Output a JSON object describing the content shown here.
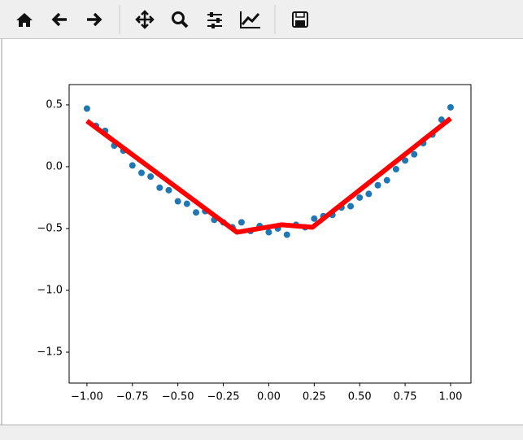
{
  "chart_data": {
    "type": "scatter",
    "points": {
      "color": "#1f77b4",
      "x": [
        -1.0,
        -0.95,
        -0.9,
        -0.85,
        -0.8,
        -0.75,
        -0.7,
        -0.65,
        -0.6,
        -0.55,
        -0.5,
        -0.45,
        -0.4,
        -0.35,
        -0.3,
        -0.25,
        -0.2,
        -0.15,
        -0.1,
        -0.05,
        0.0,
        0.05,
        0.1,
        0.15,
        0.2,
        0.25,
        0.3,
        0.35,
        0.4,
        0.45,
        0.5,
        0.55,
        0.6,
        0.65,
        0.7,
        0.75,
        0.8,
        0.85,
        0.9,
        0.95,
        1.0
      ],
      "values": [
        0.47,
        0.33,
        0.29,
        0.17,
        0.13,
        0.01,
        -0.05,
        -0.08,
        -0.17,
        -0.19,
        -0.28,
        -0.3,
        -0.37,
        -0.36,
        -0.43,
        -0.45,
        -0.49,
        -0.45,
        -0.52,
        -0.48,
        -0.53,
        -0.5,
        -0.55,
        -0.47,
        -0.49,
        -0.42,
        -0.4,
        -0.39,
        -0.33,
        -0.32,
        -0.25,
        -0.22,
        -0.15,
        -0.11,
        -0.02,
        0.05,
        0.1,
        0.19,
        0.26,
        0.38,
        0.48
      ]
    },
    "line": {
      "color": "#ff0000",
      "x": [
        -1.0,
        -0.175,
        0.07,
        0.24,
        1.0
      ],
      "values": [
        0.37,
        -0.53,
        -0.47,
        -0.49,
        0.39
      ]
    },
    "xlim": [
      -1.098,
      1.112
    ],
    "ylim": [
      -1.75,
      0.664
    ],
    "xticks": [
      {
        "value": -1.0,
        "label": "−1.00"
      },
      {
        "value": -0.75,
        "label": "−0.75"
      },
      {
        "value": -0.5,
        "label": "−0.50"
      },
      {
        "value": -0.25,
        "label": "−0.25"
      },
      {
        "value": 0,
        "label": "0.00"
      },
      {
        "value": 0.25,
        "label": "0.25"
      },
      {
        "value": 0.5,
        "label": "0.50"
      },
      {
        "value": 0.75,
        "label": "0.75"
      },
      {
        "value": 1.0,
        "label": "1.00"
      }
    ],
    "yticks": [
      0.5,
      {
        "value": 0,
        "label": "0.0"
      },
      {
        "value": -0.5,
        "label": "−0.5"
      },
      {
        "value": -1.0,
        "label": "−1.0"
      },
      {
        "value": -1.5,
        "label": "−1.5"
      }
    ]
  }
}
